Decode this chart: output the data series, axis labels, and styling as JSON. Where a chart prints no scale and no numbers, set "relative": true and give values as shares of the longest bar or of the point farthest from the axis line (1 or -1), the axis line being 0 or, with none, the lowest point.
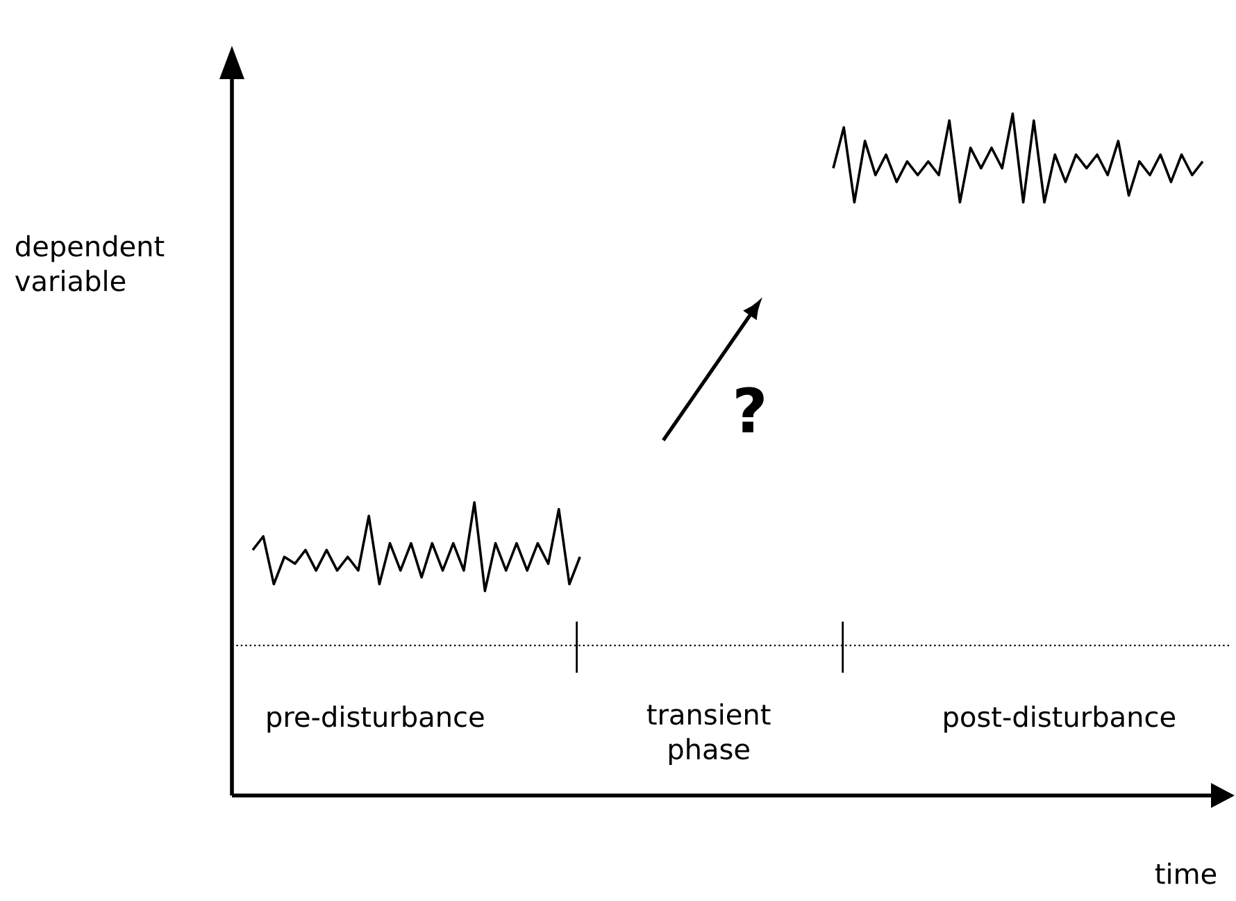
{
  "chart_data": {
    "type": "line",
    "relative": true,
    "tick_labels": false,
    "xlabel": "time",
    "ylabel": "dependent variable",
    "categories": [
      null,
      null,
      null,
      null,
      null,
      null,
      null,
      null,
      null,
      null,
      null,
      null,
      null,
      null,
      null,
      null,
      null,
      null,
      null,
      null,
      null,
      null,
      null,
      null,
      null,
      null,
      null,
      null,
      null,
      null,
      null,
      null,
      null,
      null,
      null,
      null,
      null,
      null,
      null,
      null,
      null,
      null,
      null,
      null,
      null,
      null,
      null,
      null,
      null,
      null,
      null,
      null,
      null,
      null,
      null,
      null,
      null,
      null,
      null,
      null,
      null,
      null,
      null,
      null,
      null,
      null,
      null,
      null,
      null,
      null,
      null,
      null,
      null,
      null,
      null,
      null,
      null,
      null,
      null,
      null,
      null,
      null,
      null,
      null,
      null,
      null,
      null,
      null,
      null,
      null,
      null
    ],
    "series": [
      {
        "color": "#000000",
        "values": [
          0.36,
          0.38,
          0.31,
          0.35,
          0.34,
          0.36,
          0.33,
          0.36,
          0.33,
          0.35,
          0.33,
          0.41,
          0.31,
          0.37,
          0.33,
          0.37,
          0.32,
          0.37,
          0.33,
          0.37,
          0.33,
          0.43,
          0.3,
          0.37,
          0.33,
          0.37,
          0.33,
          0.37,
          0.34,
          0.42,
          0.31,
          0.35,
          null,
          null,
          null,
          null,
          null,
          null,
          null,
          null,
          null,
          null,
          null,
          null,
          null,
          null,
          null,
          null,
          null,
          null,
          null,
          null,
          null,
          null,
          null,
          null,
          null,
          null,
          null,
          null,
          null,
          null,
          null,
          null,
          null,
          null,
          null,
          null,
          null,
          null,
          null,
          null,
          null,
          null,
          null,
          null,
          null,
          null,
          null,
          null,
          null,
          null,
          null,
          null,
          null,
          null,
          null,
          null,
          null,
          null,
          null
        ]
      },
      {
        "color": "#000000",
        "values": [
          null,
          null,
          null,
          null,
          null,
          null,
          null,
          null,
          null,
          null,
          null,
          null,
          null,
          null,
          null,
          null,
          null,
          null,
          null,
          null,
          null,
          null,
          null,
          null,
          null,
          null,
          null,
          null,
          null,
          null,
          null,
          null,
          null,
          null,
          null,
          null,
          null,
          null,
          null,
          null,
          null,
          null,
          null,
          null,
          null,
          null,
          null,
          null,
          null,
          null,
          null,
          null,
          null,
          null,
          null,
          0.92,
          0.98,
          0.87,
          0.96,
          0.91,
          0.94,
          0.9,
          0.93,
          0.91,
          0.93,
          0.91,
          0.99,
          0.87,
          0.95,
          0.92,
          0.95,
          0.92,
          1.0,
          0.87,
          0.99,
          0.87,
          0.94,
          0.9,
          0.94,
          0.92,
          0.94,
          0.91,
          0.96,
          0.88,
          0.93,
          0.91,
          0.94,
          0.9,
          0.94,
          0.91,
          0.93
        ]
      }
    ],
    "ref_lines": [
      {
        "axis": "y",
        "value": 0.22,
        "line_style": "dotted"
      }
    ],
    "annotations": [
      "pre-disturbance",
      "transient phase",
      "post-disturbance",
      "?"
    ]
  }
}
